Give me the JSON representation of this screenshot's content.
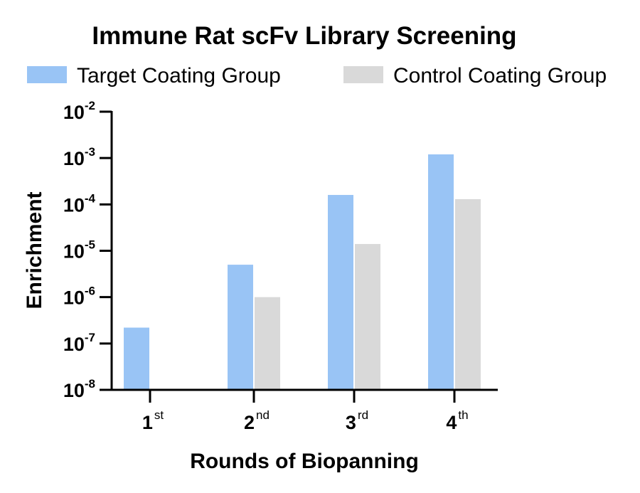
{
  "chart_data": {
    "type": "bar",
    "title": "Immune Rat scFv Library Screening",
    "xlabel": "Rounds of Biopanning",
    "ylabel": "Enrichment",
    "yscale": "log",
    "ylim": [
      1e-08,
      0.01
    ],
    "yticks": [
      {
        "base": "10",
        "exp": "-2",
        "value": 0.01
      },
      {
        "base": "10",
        "exp": "-3",
        "value": 0.001
      },
      {
        "base": "10",
        "exp": "-4",
        "value": 0.0001
      },
      {
        "base": "10",
        "exp": "-5",
        "value": 1e-05
      },
      {
        "base": "10",
        "exp": "-6",
        "value": 1e-06
      },
      {
        "base": "10",
        "exp": "-7",
        "value": 1e-07
      },
      {
        "base": "10",
        "exp": "-8",
        "value": 1e-08
      }
    ],
    "categories": [
      {
        "num": "1",
        "sup": "st"
      },
      {
        "num": "2",
        "sup": "nd"
      },
      {
        "num": "3",
        "sup": "rd"
      },
      {
        "num": "4",
        "sup": "th"
      }
    ],
    "series": [
      {
        "name": "Target Coating Group",
        "color": "#99c4f5",
        "values": [
          2.2e-07,
          5e-06,
          0.00016,
          0.0012
        ]
      },
      {
        "name": "Control Coating Group",
        "color": "#d9d9d9",
        "values": [
          null,
          1e-06,
          1.4e-05,
          0.00013
        ]
      }
    ],
    "legend_position": "top",
    "grid": false
  }
}
